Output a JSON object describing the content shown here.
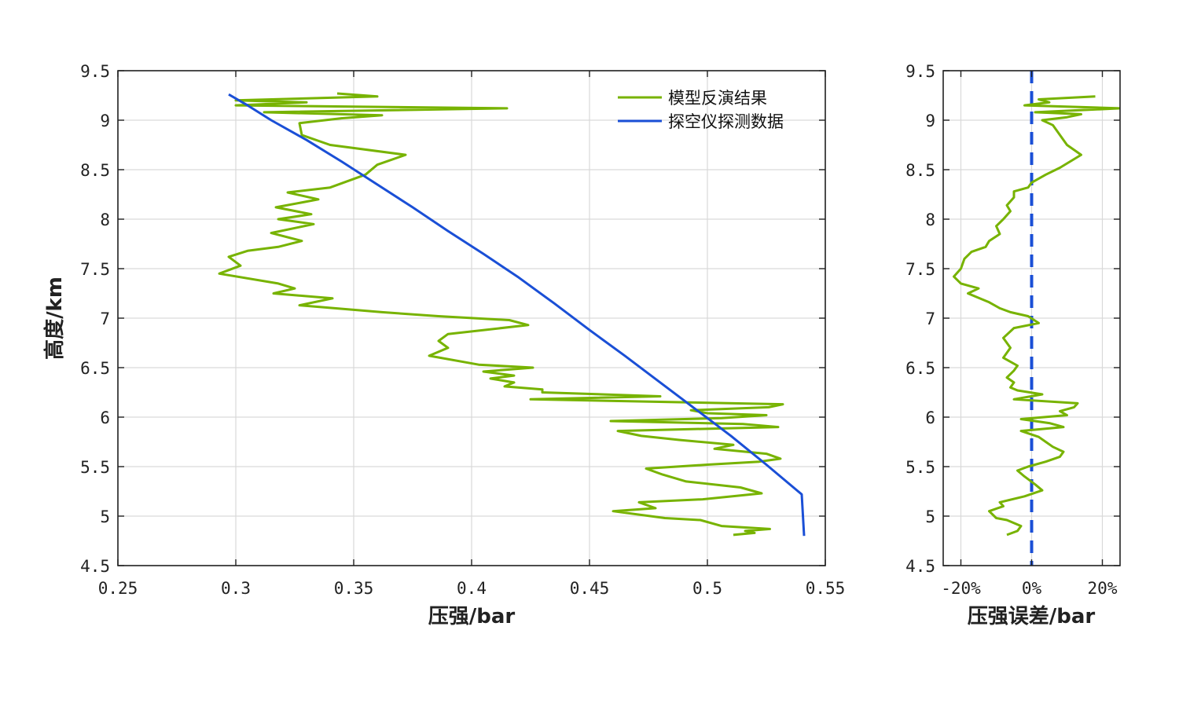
{
  "chart_data": [
    {
      "type": "line",
      "title": "",
      "xlabel": "压强/bar",
      "ylabel": "高度/km",
      "xlim": [
        0.25,
        0.55
      ],
      "ylim": [
        4.5,
        9.5
      ],
      "xticks": [
        "0.25",
        "0.3",
        "0.35",
        "0.4",
        "0.45",
        "0.5",
        "0.55"
      ],
      "yticks": [
        "4.5",
        "5",
        "5.5",
        "6",
        "6.5",
        "7",
        "7.5",
        "8",
        "8.5",
        "9",
        "9.5"
      ],
      "grid": true,
      "legend_position": "top-right",
      "series": [
        {
          "name": "模型反演结果",
          "color": "#77b300",
          "points": [
            [
              0.511,
              4.81
            ],
            [
              0.52,
              4.83
            ],
            [
              0.516,
              4.85
            ],
            [
              0.5265,
              4.87
            ],
            [
              0.506,
              4.9
            ],
            [
              0.497,
              4.96
            ],
            [
              0.482,
              4.98
            ],
            [
              0.46,
              5.05
            ],
            [
              0.478,
              5.08
            ],
            [
              0.471,
              5.14
            ],
            [
              0.498,
              5.17
            ],
            [
              0.523,
              5.23
            ],
            [
              0.514,
              5.29
            ],
            [
              0.491,
              5.35
            ],
            [
              0.481,
              5.42
            ],
            [
              0.474,
              5.48
            ],
            [
              0.5,
              5.52
            ],
            [
              0.522,
              5.55
            ],
            [
              0.531,
              5.58
            ],
            [
              0.525,
              5.63
            ],
            [
              0.503,
              5.68
            ],
            [
              0.511,
              5.72
            ],
            [
              0.488,
              5.77
            ],
            [
              0.472,
              5.81
            ],
            [
              0.462,
              5.86
            ],
            [
              0.53,
              5.9
            ],
            [
              0.515,
              5.93
            ],
            [
              0.459,
              5.96
            ],
            [
              0.506,
              5.99
            ],
            [
              0.525,
              6.02
            ],
            [
              0.5,
              6.04
            ],
            [
              0.493,
              6.07
            ],
            [
              0.526,
              6.1
            ],
            [
              0.532,
              6.13
            ],
            [
              0.425,
              6.18
            ],
            [
              0.48,
              6.21
            ],
            [
              0.43,
              6.25
            ],
            [
              0.43,
              6.28
            ],
            [
              0.414,
              6.31
            ],
            [
              0.418,
              6.35
            ],
            [
              0.408,
              6.39
            ],
            [
              0.418,
              6.42
            ],
            [
              0.405,
              6.46
            ],
            [
              0.426,
              6.5
            ],
            [
              0.403,
              6.53
            ],
            [
              0.382,
              6.62
            ],
            [
              0.39,
              6.7
            ],
            [
              0.386,
              6.77
            ],
            [
              0.39,
              6.84
            ],
            [
              0.424,
              6.93
            ],
            [
              0.416,
              6.98
            ],
            [
              0.386,
              7.02
            ],
            [
              0.362,
              7.06
            ],
            [
              0.327,
              7.13
            ],
            [
              0.341,
              7.2
            ],
            [
              0.316,
              7.25
            ],
            [
              0.325,
              7.3
            ],
            [
              0.318,
              7.35
            ],
            [
              0.293,
              7.45
            ],
            [
              0.302,
              7.53
            ],
            [
              0.297,
              7.62
            ],
            [
              0.305,
              7.68
            ],
            [
              0.318,
              7.72
            ],
            [
              0.328,
              7.78
            ],
            [
              0.315,
              7.86
            ],
            [
              0.333,
              7.95
            ],
            [
              0.318,
              8.0
            ],
            [
              0.332,
              8.05
            ],
            [
              0.317,
              8.12
            ],
            [
              0.335,
              8.2
            ],
            [
              0.322,
              8.27
            ],
            [
              0.34,
              8.32
            ],
            [
              0.355,
              8.45
            ],
            [
              0.36,
              8.55
            ],
            [
              0.372,
              8.65
            ],
            [
              0.34,
              8.75
            ],
            [
              0.328,
              8.85
            ],
            [
              0.327,
              8.97
            ],
            [
              0.345,
              9.02
            ],
            [
              0.362,
              9.05
            ],
            [
              0.312,
              9.08
            ],
            [
              0.415,
              9.12
            ],
            [
              0.3,
              9.15
            ],
            [
              0.33,
              9.18
            ],
            [
              0.3,
              9.2
            ],
            [
              0.36,
              9.24
            ],
            [
              0.343,
              9.27
            ]
          ]
        },
        {
          "name": "探空仪探测数据",
          "color": "#1a4fd6",
          "points": [
            [
              0.297,
              9.26
            ],
            [
              0.305,
              9.15
            ],
            [
              0.315,
              9.0
            ],
            [
              0.33,
              8.8
            ],
            [
              0.345,
              8.58
            ],
            [
              0.36,
              8.35
            ],
            [
              0.375,
              8.12
            ],
            [
              0.39,
              7.88
            ],
            [
              0.405,
              7.65
            ],
            [
              0.42,
              7.41
            ],
            [
              0.435,
              7.15
            ],
            [
              0.45,
              6.88
            ],
            [
              0.465,
              6.62
            ],
            [
              0.48,
              6.35
            ],
            [
              0.495,
              6.08
            ],
            [
              0.51,
              5.81
            ],
            [
              0.525,
              5.52
            ],
            [
              0.54,
              5.22
            ],
            [
              0.541,
              4.8
            ]
          ]
        }
      ]
    },
    {
      "type": "line",
      "title": "",
      "xlabel": "压强误差/bar",
      "ylabel": "",
      "xlim": [
        -25,
        25
      ],
      "ylim": [
        4.5,
        9.5
      ],
      "xticks": [
        "-20%",
        "0%",
        "20%"
      ],
      "yticks": [
        "4.5",
        "5",
        "5.5",
        "6",
        "6.5",
        "7",
        "7.5",
        "8",
        "8.5",
        "9",
        "9.5"
      ],
      "grid": true,
      "reference_line": {
        "x": 0,
        "style": "dashed",
        "color": "#1a4fd6"
      },
      "series": [
        {
          "name": "",
          "color": "#77b300",
          "points": [
            [
              -7,
              4.81
            ],
            [
              -4,
              4.85
            ],
            [
              -3,
              4.9
            ],
            [
              -7,
              4.96
            ],
            [
              -10,
              4.98
            ],
            [
              -12,
              5.05
            ],
            [
              -8,
              5.1
            ],
            [
              -9,
              5.14
            ],
            [
              -2,
              5.2
            ],
            [
              3,
              5.26
            ],
            [
              1,
              5.32
            ],
            [
              -2,
              5.4
            ],
            [
              -4,
              5.46
            ],
            [
              -1,
              5.5
            ],
            [
              4,
              5.55
            ],
            [
              8,
              5.6
            ],
            [
              9,
              5.65
            ],
            [
              6,
              5.7
            ],
            [
              4,
              5.75
            ],
            [
              2,
              5.8
            ],
            [
              -3,
              5.86
            ],
            [
              9,
              5.9
            ],
            [
              5,
              5.94
            ],
            [
              -3,
              5.98
            ],
            [
              10,
              6.02
            ],
            [
              8,
              6.06
            ],
            [
              12,
              6.1
            ],
            [
              13,
              6.14
            ],
            [
              -5,
              6.18
            ],
            [
              3,
              6.23
            ],
            [
              -4,
              6.27
            ],
            [
              -6,
              6.3
            ],
            [
              -5,
              6.35
            ],
            [
              -7,
              6.4
            ],
            [
              -5,
              6.47
            ],
            [
              -4,
              6.52
            ],
            [
              -8,
              6.6
            ],
            [
              -6,
              6.7
            ],
            [
              -8,
              6.8
            ],
            [
              -5,
              6.9
            ],
            [
              2,
              6.95
            ],
            [
              -1,
              7.02
            ],
            [
              -6,
              7.06
            ],
            [
              -9,
              7.1
            ],
            [
              -12,
              7.16
            ],
            [
              -18,
              7.25
            ],
            [
              -15,
              7.3
            ],
            [
              -20,
              7.35
            ],
            [
              -22,
              7.42
            ],
            [
              -20,
              7.5
            ],
            [
              -19,
              7.6
            ],
            [
              -17,
              7.67
            ],
            [
              -13,
              7.72
            ],
            [
              -12,
              7.78
            ],
            [
              -9,
              7.85
            ],
            [
              -10,
              7.93
            ],
            [
              -8,
              8.0
            ],
            [
              -6,
              8.08
            ],
            [
              -7,
              8.14
            ],
            [
              -5,
              8.22
            ],
            [
              -5,
              8.28
            ],
            [
              -1,
              8.32
            ],
            [
              0,
              8.37
            ],
            [
              4,
              8.45
            ],
            [
              8,
              8.52
            ],
            [
              14,
              8.65
            ],
            [
              10,
              8.75
            ],
            [
              8,
              8.85
            ],
            [
              6,
              8.95
            ],
            [
              3,
              9.0
            ],
            [
              10,
              9.03
            ],
            [
              14,
              9.06
            ],
            [
              1,
              9.08
            ],
            [
              25,
              9.12
            ],
            [
              -2,
              9.15
            ],
            [
              5,
              9.18
            ],
            [
              2,
              9.21
            ],
            [
              18,
              9.24
            ]
          ]
        }
      ]
    }
  ]
}
